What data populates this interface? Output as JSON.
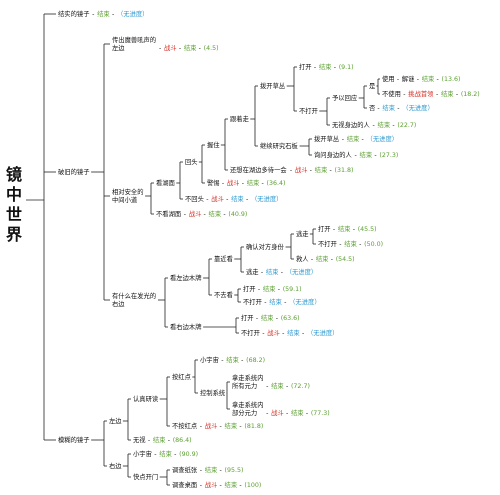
{
  "title": "镜中世界",
  "nodes": [
    {
      "id": "root",
      "label": "镜中世界"
    },
    {
      "id": "a1",
      "label": "结实的镜子",
      "parts": [
        [
          "结束",
          "g"
        ],
        [
          "（无进度）",
          "b"
        ]
      ]
    },
    {
      "id": "a2",
      "label": "破旧的镜子"
    },
    {
      "id": "a3",
      "label": "模糊的镜子"
    },
    {
      "id": "b1",
      "lines": [
        "传出魔兽吼声的",
        "左边"
      ],
      "parts": [
        [
          "战斗",
          "r"
        ],
        [
          "结束",
          "g"
        ],
        [
          "(4.5)",
          "g"
        ]
      ]
    },
    {
      "id": "b2",
      "lines": [
        "相对安全的",
        "中间小道"
      ]
    },
    {
      "id": "b3",
      "lines": [
        "有什么在发光的",
        "右边"
      ]
    },
    {
      "id": "c1",
      "label": "看湖面"
    },
    {
      "id": "c2",
      "label": "不看湖面",
      "parts": [
        [
          "战斗",
          "r"
        ],
        [
          "结束",
          "g"
        ],
        [
          "(40.9)",
          "g"
        ]
      ]
    },
    {
      "id": "c3",
      "label": "回头"
    },
    {
      "id": "c4",
      "label": "不回头",
      "parts": [
        [
          "战斗",
          "r"
        ],
        [
          "结束",
          "b"
        ],
        [
          "（无进度）",
          "b"
        ]
      ]
    },
    {
      "id": "c5",
      "label": "握住"
    },
    {
      "id": "c6",
      "label": "警惕",
      "parts": [
        [
          "战斗",
          "r"
        ],
        [
          "结束",
          "g"
        ],
        [
          "(36.4)",
          "g"
        ]
      ]
    },
    {
      "id": "c7",
      "label": "跟着走"
    },
    {
      "id": "c8",
      "label": "还想在湖边多待一会",
      "parts": [
        [
          "战斗",
          "r"
        ],
        [
          "结束",
          "g"
        ],
        [
          "(31.8)",
          "g"
        ]
      ]
    },
    {
      "id": "c9",
      "label": "拨开草丛"
    },
    {
      "id": "c10",
      "label": "继续研究石板"
    },
    {
      "id": "c11",
      "label": "打开",
      "parts": [
        [
          "结束",
          "g"
        ],
        [
          "(9.1)",
          "g"
        ]
      ]
    },
    {
      "id": "c12",
      "label": "不打开"
    },
    {
      "id": "c13",
      "label": "予以回应"
    },
    {
      "id": "c14",
      "label": "无视身边的人",
      "parts": [
        [
          "结束",
          "g"
        ],
        [
          "(22.7)",
          "g"
        ]
      ]
    },
    {
      "id": "c15",
      "label": "是"
    },
    {
      "id": "c16",
      "label": "否",
      "parts": [
        [
          "结束",
          "b"
        ],
        [
          "（无进度）",
          "b"
        ]
      ]
    },
    {
      "id": "c17",
      "label": "使用",
      "parts": [
        [
          "解谜",
          "t"
        ],
        [
          "结束",
          "g"
        ],
        [
          "(13.6)",
          "g"
        ]
      ]
    },
    {
      "id": "c18",
      "label": "不使用",
      "parts": [
        [
          "挑战首领",
          "r"
        ],
        [
          "结束",
          "g"
        ],
        [
          "(18.2)",
          "g"
        ]
      ]
    },
    {
      "id": "c19",
      "label": "拨开草丛",
      "parts": [
        [
          "结束",
          "g"
        ],
        [
          "（无进度）",
          "b"
        ]
      ]
    },
    {
      "id": "c20",
      "label": "询问身边的人",
      "parts": [
        [
          "结束",
          "g"
        ],
        [
          "(27.3)",
          "g"
        ]
      ]
    },
    {
      "id": "d1",
      "label": "看左边木牌"
    },
    {
      "id": "d2",
      "label": "看右边木牌"
    },
    {
      "id": "d3",
      "label": "靠近看"
    },
    {
      "id": "d4",
      "label": "不去看"
    },
    {
      "id": "d5",
      "label": "确认对方身份"
    },
    {
      "id": "d6",
      "label": "逃走",
      "parts": [
        [
          "结束",
          "b"
        ],
        [
          "（无进度）",
          "b"
        ]
      ]
    },
    {
      "id": "d7",
      "label": "逃走"
    },
    {
      "id": "d8",
      "label": "救人",
      "parts": [
        [
          "结束",
          "g"
        ],
        [
          "(54.5)",
          "g"
        ]
      ]
    },
    {
      "id": "d9",
      "label": "打开",
      "parts": [
        [
          "结束",
          "g"
        ],
        [
          "(45.5)",
          "g"
        ]
      ]
    },
    {
      "id": "d10",
      "label": "不打开",
      "parts": [
        [
          "结束",
          "g"
        ],
        [
          "(50.0)",
          "g"
        ]
      ]
    },
    {
      "id": "d11",
      "label": "打开",
      "parts": [
        [
          "结束",
          "g"
        ],
        [
          "(59.1)",
          "g"
        ]
      ]
    },
    {
      "id": "d12",
      "label": "不打开",
      "parts": [
        [
          "结束",
          "b"
        ],
        [
          "（无进度）",
          "b"
        ]
      ]
    },
    {
      "id": "d13",
      "label": "打开",
      "parts": [
        [
          "结束",
          "g"
        ],
        [
          "(63.6)",
          "g"
        ]
      ]
    },
    {
      "id": "d14",
      "label": "不打开",
      "parts": [
        [
          "战斗",
          "r"
        ],
        [
          "结束",
          "b"
        ],
        [
          "（无进度）",
          "b"
        ]
      ]
    },
    {
      "id": "e1",
      "label": "左边"
    },
    {
      "id": "e2",
      "label": "右边"
    },
    {
      "id": "e3",
      "label": "认真研读"
    },
    {
      "id": "e4",
      "label": "无视",
      "parts": [
        [
          "结束",
          "g"
        ],
        [
          "(86.4)",
          "g"
        ]
      ]
    },
    {
      "id": "e5",
      "label": "按红点"
    },
    {
      "id": "e6",
      "label": "不按红点",
      "parts": [
        [
          "战斗",
          "r"
        ],
        [
          "结束",
          "g"
        ],
        [
          "(81.8)",
          "g"
        ]
      ]
    },
    {
      "id": "e7",
      "label": "小宇宙",
      "parts": [
        [
          "结束",
          "g"
        ],
        [
          "(68.2)",
          "g"
        ]
      ]
    },
    {
      "id": "e8",
      "label": "控制系统"
    },
    {
      "id": "e9",
      "lines": [
        "拿走系统内",
        "所有元力"
      ],
      "parts": [
        [
          "结束",
          "g"
        ],
        [
          "(72.7)",
          "g"
        ]
      ]
    },
    {
      "id": "e10",
      "lines": [
        "拿走系统内",
        "部分元力"
      ],
      "parts": [
        [
          "战斗",
          "r"
        ],
        [
          "结束",
          "g"
        ],
        [
          "(77.3)",
          "g"
        ]
      ]
    },
    {
      "id": "e11",
      "label": "小宇宙",
      "parts": [
        [
          "结束",
          "g"
        ],
        [
          "(90.9)",
          "g"
        ]
      ]
    },
    {
      "id": "e12",
      "label": "快点开门"
    },
    {
      "id": "e13",
      "label": "调查纸张",
      "parts": [
        [
          "结束",
          "g"
        ],
        [
          "(95.5)",
          "g"
        ]
      ]
    },
    {
      "id": "e14",
      "label": "调查桌面",
      "parts": [
        [
          "战斗",
          "r"
        ],
        [
          "结束",
          "g"
        ],
        [
          "(100)",
          "g"
        ]
      ]
    }
  ]
}
